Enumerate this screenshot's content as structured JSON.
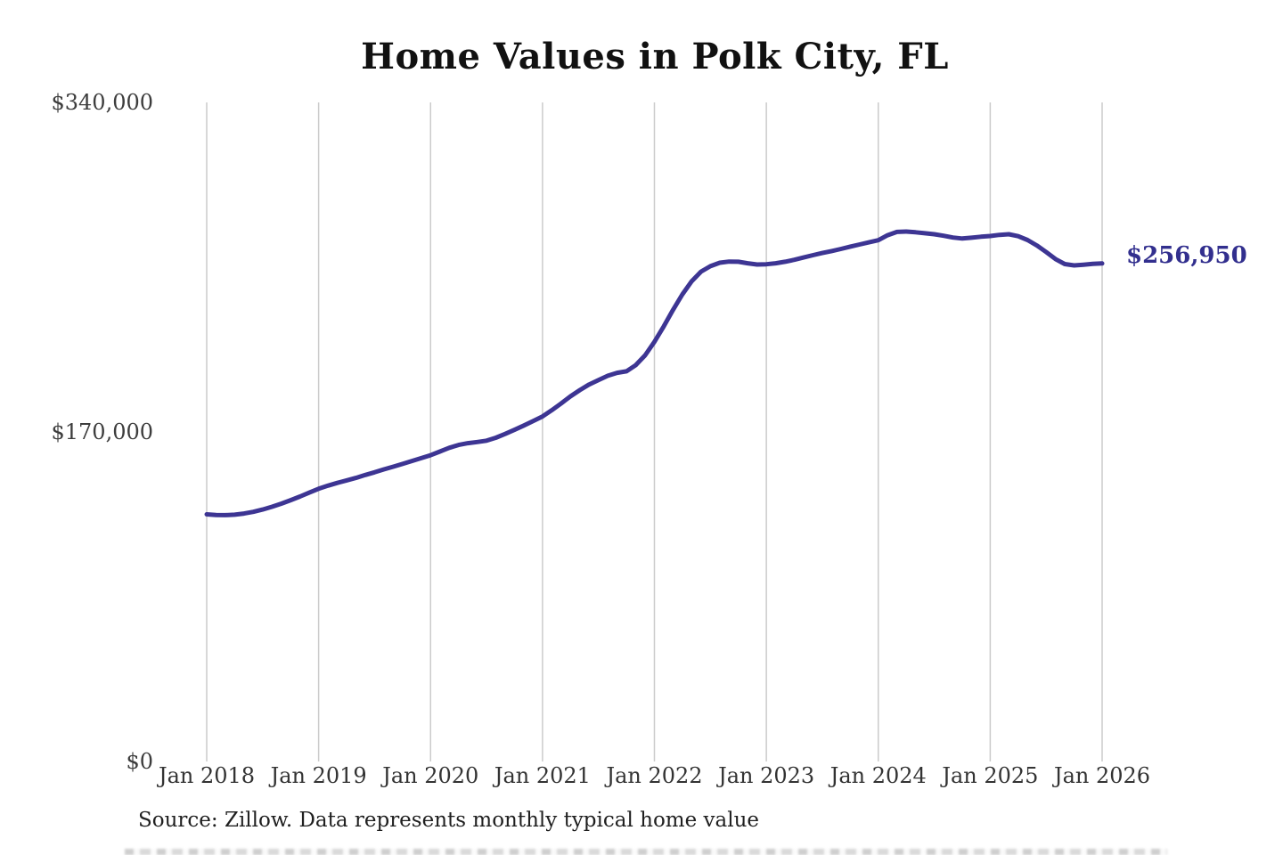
{
  "chart_data": {
    "type": "line",
    "title": "Home Values in Polk City, FL",
    "series_name": "Monthly typical home value",
    "x_tick_labels": [
      "Jan 2018",
      "Jan 2019",
      "Jan 2020",
      "Jan 2021",
      "Jan 2022",
      "Jan 2023",
      "Jan 2024",
      "Jan 2025",
      "Jan 2026"
    ],
    "y_tick_labels": [
      "$340,000",
      "$170,000",
      "$0"
    ],
    "ylim": [
      0,
      340000
    ],
    "grid": "vertical-only",
    "legend": "none",
    "line_color": "#3d3593",
    "end_label_color": "#322f8e",
    "grid_color": "#cbcbcb",
    "final_value": 256950,
    "final_value_label": "$256,950",
    "x_start": "Jan 2018",
    "x_end": "Jan 2026",
    "x_interval": "monthly",
    "values": [
      127500,
      127200,
      127100,
      127300,
      127900,
      128800,
      130000,
      131400,
      133000,
      134800,
      136700,
      138700,
      140700,
      142300,
      143700,
      145000,
      146300,
      147800,
      149200,
      150700,
      152100,
      153500,
      155000,
      156500,
      158000,
      159900,
      161800,
      163300,
      164200,
      164800,
      165500,
      167000,
      169000,
      171100,
      173300,
      175600,
      178000,
      181200,
      184700,
      188400,
      191600,
      194500,
      196800,
      199000,
      200500,
      201300,
      204500,
      209500,
      216500,
      224500,
      233000,
      241000,
      247800,
      252700,
      255500,
      257300,
      257900,
      257800,
      257000,
      256400,
      256500,
      257000,
      257800,
      258800,
      260000,
      261200,
      262300,
      263300,
      264400,
      265600,
      266700,
      267800,
      268900,
      271500,
      273200,
      273400,
      273000,
      272500,
      272000,
      271200,
      270300,
      269800,
      270200,
      270700,
      271100,
      271700,
      272000,
      271000,
      269000,
      266200,
      262800,
      259200,
      256600,
      255900,
      256300,
      256700,
      256950
    ]
  },
  "source_note": "Source: Zillow. Data represents monthly typical home value"
}
